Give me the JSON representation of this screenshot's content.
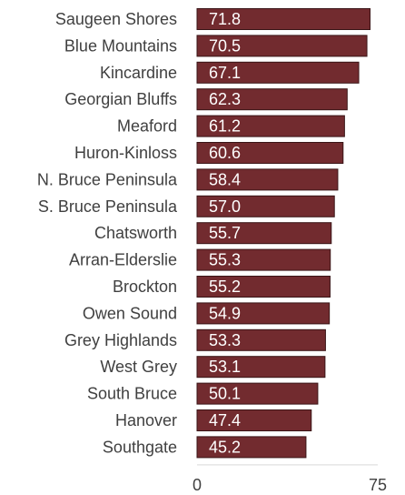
{
  "chart_data": {
    "type": "bar",
    "orientation": "horizontal",
    "categories": [
      "Saugeen Shores",
      "Blue Mountains",
      "Kincardine",
      "Georgian Bluffs",
      "Meaford",
      "Huron-Kinloss",
      "N. Bruce Peninsula",
      "S. Bruce Peninsula",
      "Chatsworth",
      "Arran-Elderslie",
      "Brockton",
      "Owen Sound",
      "Grey Highlands",
      "West Grey",
      "South Bruce",
      "Hanover",
      "Southgate"
    ],
    "values": [
      71.8,
      70.5,
      67.1,
      62.3,
      61.2,
      60.6,
      58.4,
      57.0,
      55.7,
      55.3,
      55.2,
      54.9,
      53.3,
      53.1,
      50.1,
      47.4,
      45.2
    ],
    "value_labels": [
      "71.8",
      "70.5",
      "67.1",
      "62.3",
      "61.2",
      "60.6",
      "58.4",
      "57.0",
      "55.7",
      "55.3",
      "55.2",
      "54.9",
      "53.3",
      "53.1",
      "50.1",
      "47.4",
      "45.2"
    ],
    "xlim": [
      0,
      75
    ],
    "x_ticks": [
      "0",
      "75"
    ],
    "grid": false,
    "legend": "none",
    "bar_color": "#722b2f",
    "bar_edge_color": "#3a1517",
    "text_color": "#404040",
    "label_color": "#ffffff"
  }
}
